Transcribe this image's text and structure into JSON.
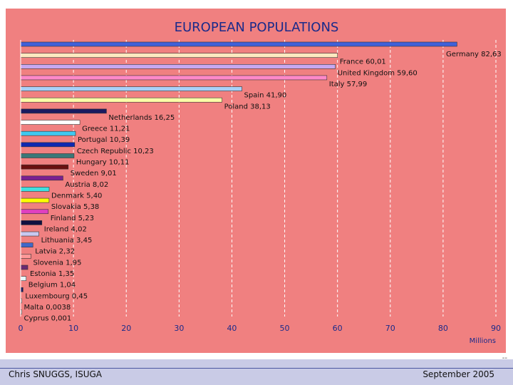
{
  "slide": {
    "footer_left": "Chris SNUGGS, ISUGA",
    "footer_right": "September 2005",
    "slide_number": "--"
  },
  "colors": {
    "background": "#f08080",
    "title": "#1a2a8a",
    "axis_labels": "#1a2a8a"
  },
  "chart_data": {
    "type": "bar",
    "orientation": "horizontal",
    "title": "EUROPEAN POPULATIONS",
    "xlabel": "Millions",
    "ylabel": "",
    "xlim": [
      0,
      90
    ],
    "xticks": [
      0,
      10,
      20,
      30,
      40,
      50,
      60,
      70,
      80,
      90
    ],
    "grid": "vertical dashed",
    "categories": [
      "Germany",
      "France",
      "United Kingdom",
      "Italy",
      "Spain",
      "Poland",
      "Netherlands",
      "Greece",
      "Portugal",
      "Czech Republic",
      "Hungary",
      "Sweden",
      "Austria",
      "Denmark",
      "Slovakia",
      "Finland",
      "Ireland",
      "Lithuania",
      "Latvia",
      "Slovenia",
      "Estonia",
      "Belgium",
      "Luxembourg",
      "Malta",
      "Cyprus"
    ],
    "data_labels": [
      "Germany 82,63",
      "France 60,01",
      "United Kingdom 59,60",
      "Italy 57,99",
      "Spain 41,90",
      "Poland 38,13",
      "Netherlands 16,25",
      "Greece 11,21",
      "Portugal 10,39",
      "Czech Republic 10,23",
      "Hungary 10,11",
      "Sweden 9,01",
      "Austria 8,02",
      "Denmark 5,40",
      "Slovakia 5,38",
      "Finland 5,23",
      "Ireland 4,02",
      "Lithuania 3,45",
      "Latvia 2,32",
      "Slovenia 1,95",
      "Estonia 1,35",
      "Belgium 1,04",
      "Luxembourg 0,45",
      "Malta 0,0038",
      "Cyprus 0,001"
    ],
    "values": [
      82.63,
      60.01,
      59.6,
      57.99,
      41.9,
      38.13,
      16.25,
      11.21,
      10.39,
      10.23,
      10.11,
      9.01,
      8.02,
      5.4,
      5.38,
      5.23,
      4.02,
      3.45,
      2.32,
      1.95,
      1.35,
      1.04,
      0.45,
      0.0038,
      0.001
    ],
    "bar_colors": [
      "#4060d8",
      "#ffe8c0",
      "#c8a8f0",
      "#ff88c8",
      "#a8d0f8",
      "#ffffa8",
      "#1a1a60",
      "#ffffff",
      "#40c8f0",
      "#1028b0",
      "#3a7878",
      "#6a1010",
      "#7a2090",
      "#40e0e0",
      "#ffff00",
      "#e040c0",
      "#101040",
      "#c8c8f0",
      "#4068c8",
      "#ff9898",
      "#6a2a70",
      "#e8f8ff",
      "#1a1a60",
      "#ffffff",
      "#ffffff"
    ]
  }
}
